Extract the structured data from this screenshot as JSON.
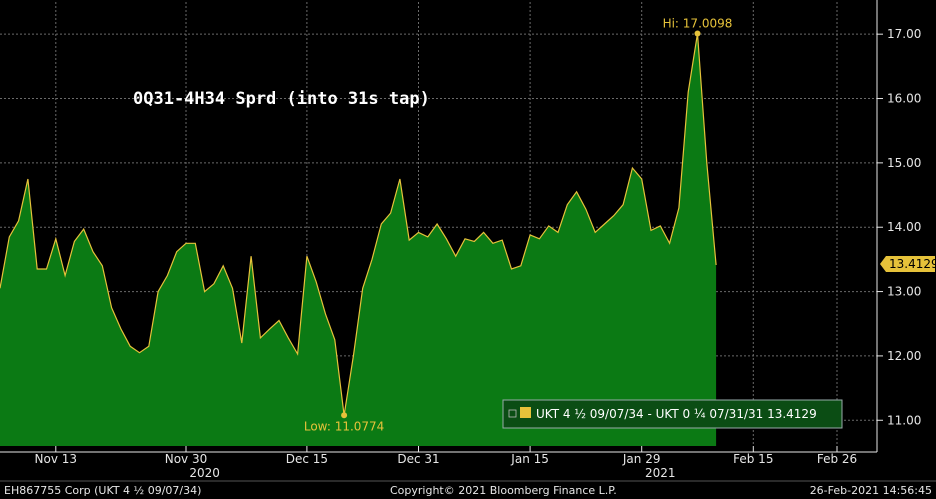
{
  "chart_data": {
    "type": "area",
    "title": "0Q31-4H34 Sprd (into 31s tap)",
    "ylim": [
      10.6,
      17.5
    ],
    "yticks": [
      11.0,
      12.0,
      13.0,
      14.0,
      15.0,
      16.0,
      17.0
    ],
    "ytick_labels": [
      "11.00",
      "12.00",
      "13.00",
      "14.00",
      "15.00",
      "16.00",
      "17.00"
    ],
    "x_index_range": [
      0,
      96
    ],
    "xticks": [
      {
        "label": "Nov 13",
        "i": 6
      },
      {
        "label": "Nov 30",
        "i": 20
      },
      {
        "label": "Dec 15",
        "i": 33
      },
      {
        "label": "Dec 31",
        "i": 45
      },
      {
        "label": "Jan 15",
        "i": 57
      },
      {
        "label": "Jan 29",
        "i": 69
      },
      {
        "label": "Feb 15",
        "i": 81
      },
      {
        "label": "Feb 26",
        "i": 90
      }
    ],
    "year_labels": [
      {
        "label": "2020",
        "i": 22
      },
      {
        "label": "2021",
        "i": 71
      }
    ],
    "series": [
      {
        "name": "UKT 4 ½ 09/07/34 - UKT 0 ¼ 07/31/31",
        "color": "#e6c23a",
        "fill": "#0b7a14",
        "values": [
          13.05,
          13.85,
          14.1,
          14.75,
          13.35,
          13.35,
          13.82,
          13.25,
          13.78,
          13.97,
          13.62,
          13.4,
          12.75,
          12.42,
          12.15,
          12.05,
          12.15,
          13.0,
          13.25,
          13.62,
          13.75,
          13.75,
          13.0,
          13.12,
          13.4,
          13.05,
          12.2,
          13.55,
          12.28,
          12.42,
          12.55,
          12.28,
          12.03,
          13.55,
          13.15,
          12.65,
          12.25,
          11.0774,
          12.0,
          13.05,
          13.5,
          14.05,
          14.22,
          14.75,
          13.8,
          13.92,
          13.85,
          14.05,
          13.82,
          13.55,
          13.82,
          13.78,
          13.92,
          13.75,
          13.8,
          13.35,
          13.4,
          13.88,
          13.82,
          14.02,
          13.92,
          14.35,
          14.55,
          14.28,
          13.92,
          14.05,
          14.18,
          14.35,
          14.92,
          14.75,
          13.95,
          14.02,
          13.75,
          14.3,
          16.1,
          17.0098,
          15.0,
          13.4129
        ]
      }
    ],
    "hi": {
      "label": "Hi: 17.0098",
      "value": 17.0098
    },
    "low": {
      "label": "Low: 11.0774",
      "value": 11.0774
    },
    "last_value_label": "13.4129",
    "legend": {
      "position": "bottom-right",
      "text": "UKT 4 ½ 09/07/34 - UKT 0 ¼ 07/31/31 13.4129"
    },
    "grid": true
  },
  "footer": {
    "left": "EH867755 Corp (UKT 4 ½ 09/07/34)",
    "center": "Copyright© 2021 Bloomberg Finance L.P.",
    "right": "26-Feb-2021 14:56:45"
  },
  "colors": {
    "background": "#000000",
    "area_fill": "#0b7a14",
    "line": "#e6c23a",
    "grid": "#6a6a6a",
    "legend_bg": "#0b4d14"
  }
}
